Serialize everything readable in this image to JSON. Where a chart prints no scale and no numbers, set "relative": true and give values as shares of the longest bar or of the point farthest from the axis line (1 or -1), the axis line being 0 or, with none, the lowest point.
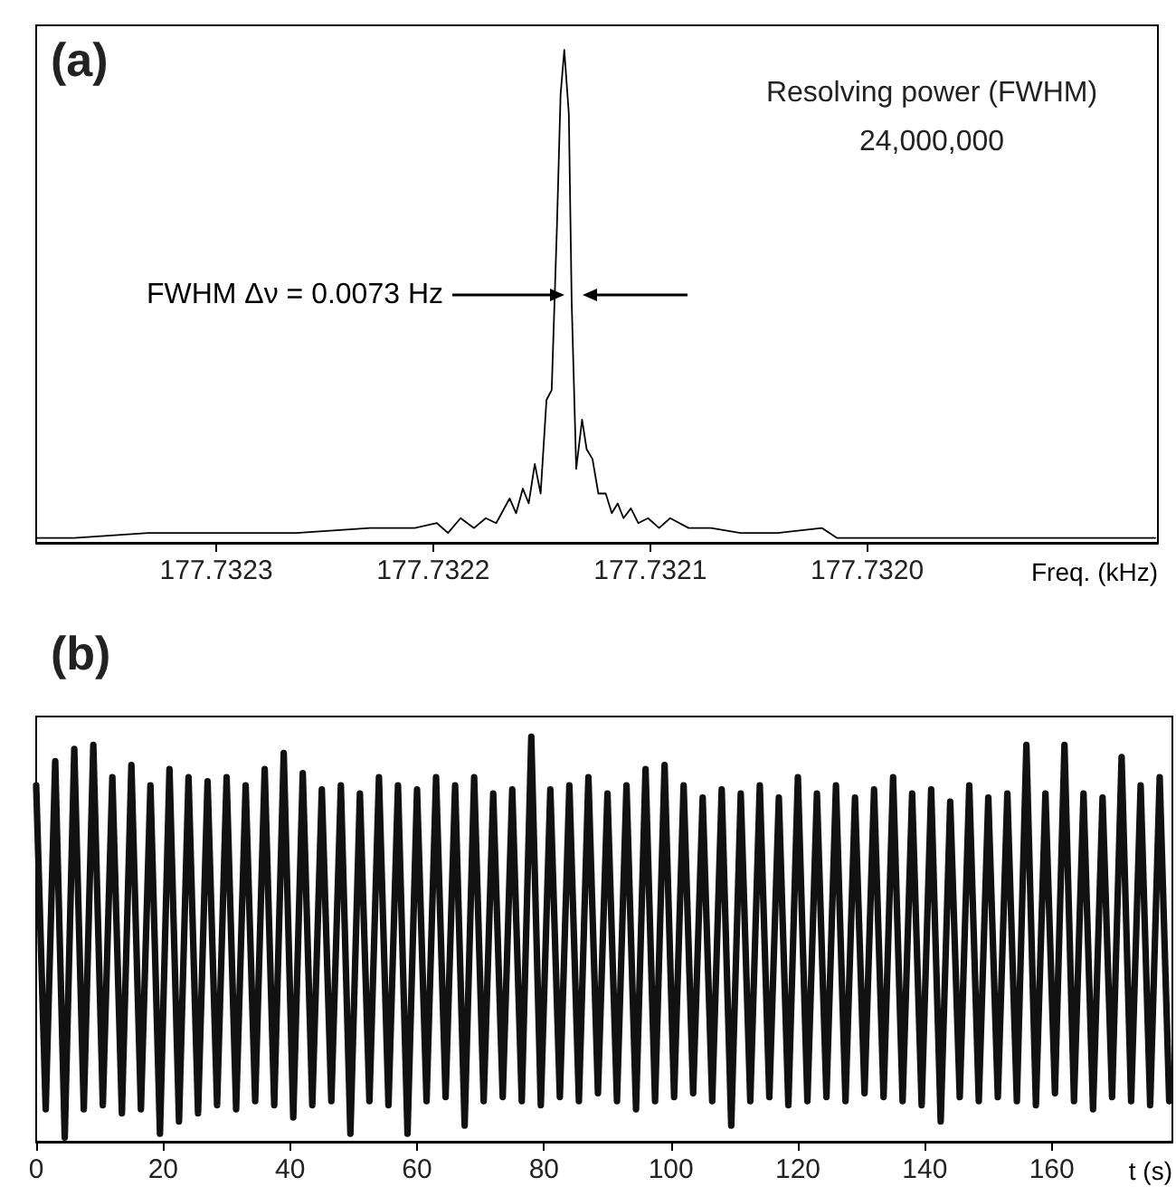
{
  "chart_data": [
    {
      "type": "line",
      "title": "(a)",
      "xlabel": "Freq. (kHz)",
      "relative": true,
      "tick_labels": "x",
      "marker": "none",
      "annotations": [
        "Resolving power (FWHM)\n24,000,000",
        "FWHM Δν = 0.0073 Hz"
      ],
      "xlim": [
        177.732383,
        177.731866
      ],
      "xticks": [
        177.7323,
        177.7322,
        177.7321,
        {
          "value": 177.732,
          "label": "177.7320"
        }
      ],
      "x": [
        177.7323826,
        177.7323655,
        177.7323314,
        177.7322973,
        177.7322631,
        177.732229,
        177.7322085,
        177.7321983,
        177.7321932,
        177.7321874,
        177.7321812,
        177.7321758,
        177.732171,
        177.7321648,
        177.7321618,
        177.7321587,
        177.732156,
        177.7321532,
        177.7321505,
        177.7321478,
        177.7321454,
        177.732143,
        177.7321413,
        177.7321396,
        177.7321375,
        177.7321362,
        177.7321341,
        177.7321314,
        177.7321293,
        177.7321266,
        177.7321239,
        177.7321205,
        177.7321177,
        177.732115,
        177.7321123,
        177.7321089,
        177.7321055,
        177.732101,
        177.7320959,
        177.7320908,
        177.7320823,
        177.732072,
        177.7320584,
        177.7320413,
        177.7320208,
        177.732014,
        177.7319901,
        177.731956,
        177.7319218,
        177.7318877,
        177.7318672
      ],
      "series": [
        {
          "color": "#000000",
          "values": [
            0.01,
            0.01,
            0.02,
            0.02,
            0.02,
            0.03,
            0.03,
            0.04,
            0.02,
            0.05,
            0.03,
            0.05,
            0.04,
            0.09,
            0.06,
            0.11,
            0.08,
            0.16,
            0.1,
            0.29,
            0.31,
            0.64,
            0.91,
            1.0,
            0.87,
            0.49,
            0.15,
            0.25,
            0.19,
            0.17,
            0.1,
            0.1,
            0.06,
            0.08,
            0.05,
            0.07,
            0.04,
            0.05,
            0.03,
            0.05,
            0.03,
            0.03,
            0.02,
            0.02,
            0.03,
            0.01,
            0.01,
            0.01,
            0.01,
            0.01,
            0.01
          ]
        }
      ]
    },
    {
      "type": "line",
      "title": "(b)",
      "xlabel": "t (s)",
      "relative": true,
      "tick_labels": "x",
      "marker": "none",
      "xlim": [
        0,
        179
      ],
      "xticks": [
        0,
        20,
        40,
        60,
        80,
        100,
        120,
        140,
        160
      ],
      "x": [
        0,
        1.5,
        3,
        4.5,
        6,
        7.5,
        9,
        10.5,
        12,
        13.5,
        15,
        16.5,
        18,
        19.5,
        21,
        22.5,
        24,
        25.5,
        27,
        28.5,
        30,
        31.5,
        33,
        34.5,
        36,
        37.5,
        39,
        40.5,
        42,
        43.5,
        45,
        46.5,
        48,
        49.5,
        51,
        52.5,
        54,
        55.5,
        57,
        58.5,
        60,
        61.5,
        63,
        64.5,
        66,
        67.5,
        69,
        70.5,
        72,
        73.5,
        75,
        76.5,
        78,
        79.5,
        81,
        82.5,
        84,
        85.5,
        87,
        88.5,
        90,
        91.5,
        93,
        94.5,
        96,
        97.5,
        99,
        100.5,
        102,
        103.5,
        105,
        106.5,
        108,
        109.5,
        111,
        112.5,
        114,
        115.5,
        117,
        118.5,
        120,
        121.5,
        123,
        124.5,
        126,
        127.5,
        129,
        130.5,
        132,
        133.5,
        135,
        136.5,
        138,
        139.5,
        141,
        142.5,
        144,
        145.5,
        147,
        148.5,
        150,
        151.5,
        153,
        154.5,
        156,
        157.5,
        159,
        160.5,
        162,
        163.5,
        165,
        166.5,
        168,
        169.5,
        171,
        172.5,
        174,
        175.5,
        177,
        178.5
      ],
      "series": [
        {
          "color": "#111111",
          "values": [
            0.88,
            0.08,
            0.94,
            0.01,
            0.97,
            0.08,
            0.98,
            0.09,
            0.9,
            0.07,
            0.93,
            0.08,
            0.88,
            0.02,
            0.92,
            0.05,
            0.9,
            0.07,
            0.89,
            0.09,
            0.9,
            0.08,
            0.88,
            0.1,
            0.92,
            0.09,
            0.96,
            0.06,
            0.91,
            0.09,
            0.87,
            0.1,
            0.88,
            0.02,
            0.86,
            0.1,
            0.9,
            0.09,
            0.88,
            0.02,
            0.87,
            0.1,
            0.9,
            0.11,
            0.88,
            0.04,
            0.9,
            0.1,
            0.86,
            0.11,
            0.87,
            0.1,
            1.0,
            0.09,
            0.87,
            0.11,
            0.88,
            0.1,
            0.9,
            0.12,
            0.86,
            0.1,
            0.88,
            0.08,
            0.92,
            0.1,
            0.93,
            0.11,
            0.88,
            0.12,
            0.85,
            0.1,
            0.87,
            0.04,
            0.86,
            0.1,
            0.88,
            0.11,
            0.85,
            0.09,
            0.9,
            0.1,
            0.86,
            0.11,
            0.88,
            0.1,
            0.85,
            0.12,
            0.87,
            0.11,
            0.9,
            0.1,
            0.86,
            0.09,
            0.87,
            0.05,
            0.84,
            0.11,
            0.88,
            0.1,
            0.85,
            0.11,
            0.86,
            0.1,
            0.98,
            0.09,
            0.86,
            0.12,
            0.98,
            0.1,
            0.86,
            0.08,
            0.85,
            0.11,
            0.95,
            0.1,
            0.88,
            0.09,
            0.9,
            0.1
          ]
        }
      ]
    }
  ]
}
